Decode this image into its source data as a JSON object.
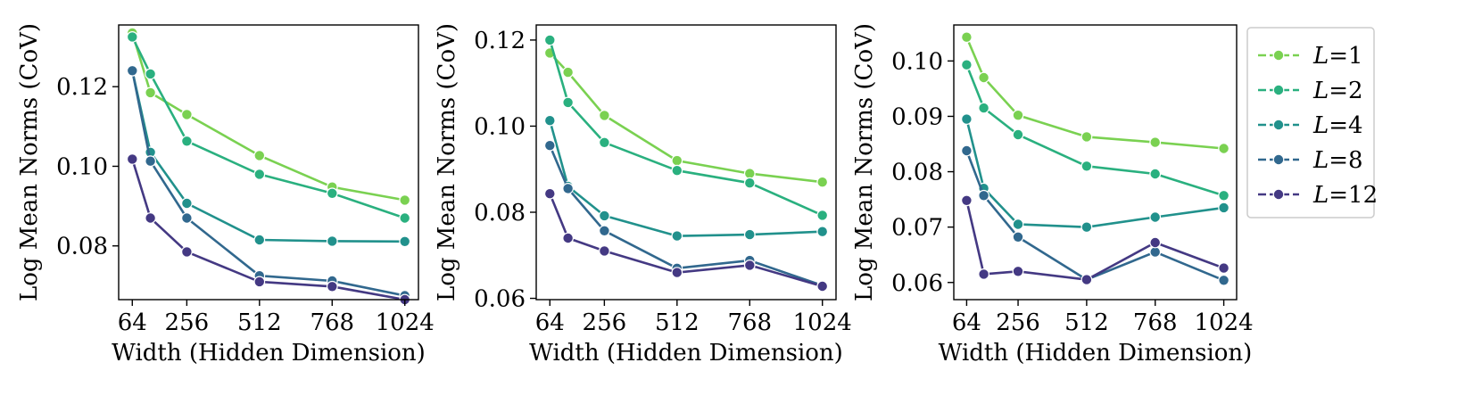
{
  "chart_data": [
    {
      "type": "line",
      "title": "",
      "xlabel": "Width (Hidden Dimension)",
      "ylabel": "Log Mean Norms (CoV)",
      "xticks": [
        64,
        256,
        512,
        768,
        1024
      ],
      "xlim": [
        16,
        1072
      ],
      "ylim": [
        0.0665,
        0.1355
      ],
      "yticks": [
        0.08,
        0.1,
        0.12
      ],
      "ytick_labels": [
        "0.08",
        "0.10",
        "0.12"
      ],
      "x": [
        64,
        128,
        256,
        512,
        768,
        1024
      ],
      "series": [
        {
          "name": "L=1",
          "values": [
            0.1335,
            0.1185,
            0.113,
            0.1027,
            0.0948,
            0.0915
          ]
        },
        {
          "name": "L=2",
          "values": [
            0.1325,
            0.1232,
            0.1063,
            0.098,
            0.0932,
            0.087
          ]
        },
        {
          "name": "L=4",
          "values": [
            0.124,
            0.1035,
            0.0907,
            0.0815,
            0.0812,
            0.0811
          ]
        },
        {
          "name": "L=8",
          "values": [
            0.124,
            0.1013,
            0.087,
            0.0725,
            0.0712,
            0.0675
          ]
        },
        {
          "name": "L=12",
          "values": [
            0.1018,
            0.087,
            0.0785,
            0.071,
            0.0698,
            0.0665
          ]
        }
      ]
    },
    {
      "type": "line",
      "title": "",
      "xlabel": "Width (Hidden Dimension)",
      "ylabel": "Log Mean Norms (CoV)",
      "xticks": [
        64,
        256,
        512,
        768,
        1024
      ],
      "xlim": [
        16,
        1072
      ],
      "ylim": [
        0.0597,
        0.1235
      ],
      "yticks": [
        0.06,
        0.08,
        0.1,
        0.12
      ],
      "ytick_labels": [
        "0.06",
        "0.08",
        "0.10",
        "0.12"
      ],
      "x": [
        64,
        128,
        256,
        512,
        768,
        1024
      ],
      "series": [
        {
          "name": "L=1",
          "values": [
            0.117,
            0.1125,
            0.1025,
            0.092,
            0.089,
            0.087
          ]
        },
        {
          "name": "L=2",
          "values": [
            0.12,
            0.1055,
            0.0962,
            0.0897,
            0.0868,
            0.0793
          ]
        },
        {
          "name": "L=4",
          "values": [
            0.1013,
            0.086,
            0.0792,
            0.0745,
            0.0748,
            0.0755
          ]
        },
        {
          "name": "L=8",
          "values": [
            0.0955,
            0.0855,
            0.0757,
            0.067,
            0.0688,
            0.063
          ]
        },
        {
          "name": "L=12",
          "values": [
            0.0843,
            0.074,
            0.071,
            0.066,
            0.0677,
            0.0628
          ]
        }
      ]
    },
    {
      "type": "line",
      "title": "",
      "xlabel": "Width (Hidden Dimension)",
      "ylabel": "Log Mean Norms (CoV)",
      "xticks": [
        64,
        256,
        512,
        768,
        1024
      ],
      "xlim": [
        16,
        1072
      ],
      "ylim": [
        0.0569,
        0.1065
      ],
      "yticks": [
        0.06,
        0.07,
        0.08,
        0.09,
        0.1
      ],
      "ytick_labels": [
        "0.06",
        "0.07",
        "0.08",
        "0.09",
        "0.10"
      ],
      "x": [
        64,
        128,
        256,
        512,
        768,
        1024
      ],
      "series": [
        {
          "name": "L=1",
          "values": [
            0.1043,
            0.097,
            0.0902,
            0.0863,
            0.0853,
            0.0842
          ]
        },
        {
          "name": "L=2",
          "values": [
            0.0993,
            0.0915,
            0.0867,
            0.081,
            0.0796,
            0.0757
          ]
        },
        {
          "name": "L=4",
          "values": [
            0.0895,
            0.077,
            0.0705,
            0.07,
            0.0718,
            0.0735
          ]
        },
        {
          "name": "L=8",
          "values": [
            0.0838,
            0.0757,
            0.0682,
            0.0605,
            0.0655,
            0.0604
          ]
        },
        {
          "name": "L=12",
          "values": [
            0.0748,
            0.0615,
            0.062,
            0.0605,
            0.0672,
            0.0626
          ]
        }
      ]
    }
  ],
  "legend": {
    "placement": "right",
    "entries": [
      {
        "var": "L",
        "eq": "=1"
      },
      {
        "var": "L",
        "eq": "=2"
      },
      {
        "var": "L",
        "eq": "=4"
      },
      {
        "var": "L",
        "eq": "=8"
      },
      {
        "var": "L",
        "eq": "=12"
      }
    ]
  },
  "colors": {
    "series": [
      "#7ad151",
      "#2ab07f",
      "#21918c",
      "#31688e",
      "#443983"
    ],
    "axis": "#000000",
    "background": "#ffffff"
  }
}
